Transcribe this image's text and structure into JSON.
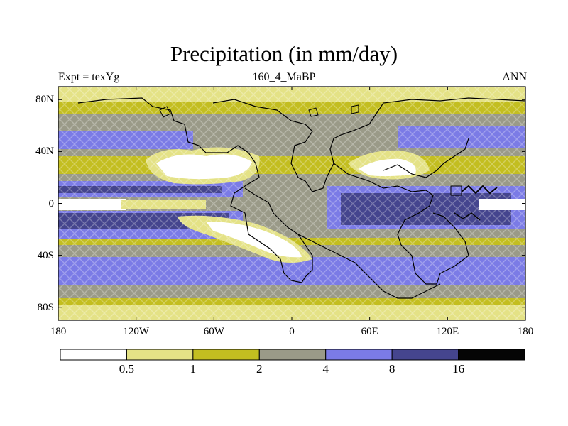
{
  "header": {
    "title": "Precipitation (in mm/day)",
    "left_label": "Expt = texYg",
    "center_label": "160_4_MaBP",
    "right_label": "ANN"
  },
  "map": {
    "lon_range": [
      -180,
      180
    ],
    "lat_range": [
      -90,
      90
    ],
    "x_ticks": [
      {
        "lon": -180,
        "label": "180"
      },
      {
        "lon": -120,
        "label": "120W"
      },
      {
        "lon": -60,
        "label": "60W"
      },
      {
        "lon": 0,
        "label": "0"
      },
      {
        "lon": 60,
        "label": "60E"
      },
      {
        "lon": 120,
        "label": "120E"
      },
      {
        "lon": 180,
        "label": "180"
      }
    ],
    "y_ticks": [
      {
        "lat": 80,
        "label": "80N"
      },
      {
        "lat": 40,
        "label": "40N"
      },
      {
        "lat": 0,
        "label": "0"
      },
      {
        "lat": -40,
        "label": "40S"
      },
      {
        "lat": -80,
        "label": "80S"
      }
    ]
  },
  "colorbar": {
    "levels": [
      "0.5",
      "1",
      "2",
      "4",
      "8",
      "16"
    ],
    "colors": [
      "#ffffff",
      "#e4e286",
      "#c3be20",
      "#9a9a88",
      "#7b7be6",
      "#45458e",
      "#050505"
    ]
  }
}
